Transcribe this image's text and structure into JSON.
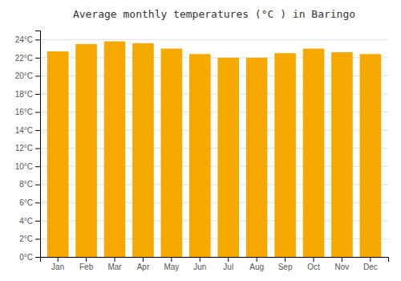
{
  "chart_data": {
    "type": "bar",
    "title": "Average monthly temperatures (°C ) in Baringo",
    "categories": [
      "Jan",
      "Feb",
      "Mar",
      "Apr",
      "May",
      "Jun",
      "Jul",
      "Aug",
      "Sep",
      "Oct",
      "Nov",
      "Dec"
    ],
    "values": [
      22.7,
      23.5,
      23.8,
      23.6,
      23.0,
      22.4,
      22.0,
      22.0,
      22.5,
      23.0,
      22.6,
      22.4
    ],
    "color": "#F5A800",
    "ylim": [
      0,
      25
    ],
    "yticks": [
      {
        "value": 0,
        "label": "0°C"
      },
      {
        "value": 2,
        "label": "2°C"
      },
      {
        "value": 4,
        "label": "4°C"
      },
      {
        "value": 6,
        "label": "6°C"
      },
      {
        "value": 8,
        "label": "8°C"
      },
      {
        "value": 10,
        "label": "10°C"
      },
      {
        "value": 12,
        "label": "12°C"
      },
      {
        "value": 14,
        "label": "14°C"
      },
      {
        "value": 16,
        "label": "16°C"
      },
      {
        "value": 18,
        "label": "18°C"
      },
      {
        "value": 20,
        "label": "20°C"
      },
      {
        "value": 22,
        "label": "22°C"
      },
      {
        "value": 24,
        "label": "24°C"
      }
    ],
    "grid": true
  }
}
